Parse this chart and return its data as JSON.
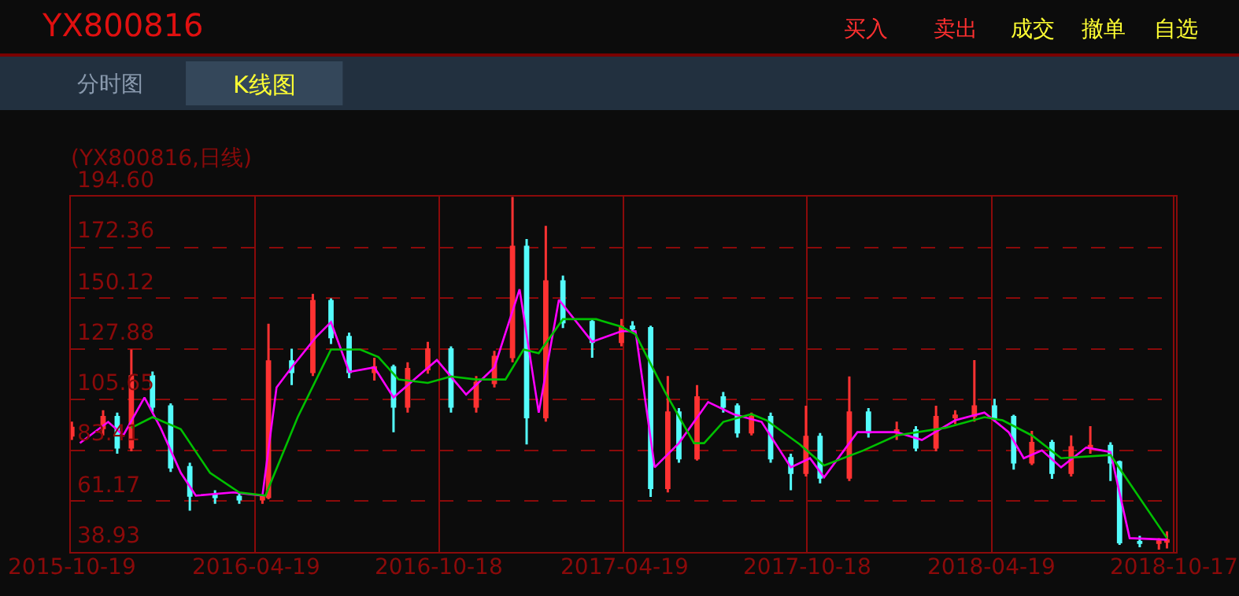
{
  "chart_data": {
    "type": "candlestick",
    "title": "(YX800816,日线)",
    "annotations": [
      "YX800816",
      "买入",
      "卖出",
      "成交",
      "撤单",
      "自选",
      "分时图",
      "K线图"
    ],
    "x": [
      "2015-10-20",
      "2015-11-20",
      "2015-12-04",
      "2015-12-18",
      "2016-01-08",
      "2016-01-26",
      "2016-02-14",
      "2016-03-10",
      "2016-04-03",
      "2016-04-26",
      "2016-05-02",
      "2016-05-25",
      "2016-06-15",
      "2016-07-03",
      "2016-07-21",
      "2016-08-15",
      "2016-09-03",
      "2016-09-17",
      "2016-10-07",
      "2016-10-30",
      "2016-11-24",
      "2016-12-12",
      "2016-12-30",
      "2017-01-13",
      "2017-02-01",
      "2017-02-18",
      "2017-03-19",
      "2017-04-17",
      "2017-04-28",
      "2017-05-16",
      "2017-06-02",
      "2017-06-13",
      "2017-07-01",
      "2017-07-27",
      "2017-08-10",
      "2017-08-24",
      "2017-09-12",
      "2017-10-02",
      "2017-10-17",
      "2017-10-31",
      "2017-11-29",
      "2017-12-18",
      "2018-01-15",
      "2018-02-03",
      "2018-02-23",
      "2018-03-14",
      "2018-04-02",
      "2018-04-22",
      "2018-05-11",
      "2018-05-29",
      "2018-06-18",
      "2018-07-07",
      "2018-07-26",
      "2018-08-15",
      "2018-08-24",
      "2018-09-13",
      "2018-10-02",
      "2018-10-10"
    ],
    "ohlc": [
      [
        90,
        96,
        88,
        93.3
      ],
      [
        93.3,
        101,
        90,
        98
      ],
      [
        98,
        100,
        82,
        84.7
      ],
      [
        84.7,
        127.6,
        83,
        115.8
      ],
      [
        115.8,
        118,
        100,
        102.6
      ],
      [
        102.6,
        104,
        74,
        76
      ],
      [
        76,
        78,
        57,
        63.6
      ],
      [
        63.6,
        66,
        60,
        63
      ],
      [
        63,
        65,
        60,
        62
      ],
      [
        62,
        64,
        60,
        63
      ],
      [
        63,
        138.9,
        62,
        122.4
      ],
      [
        122.4,
        128,
        112,
        117.8
      ],
      [
        117.8,
        152,
        116,
        148.8
      ],
      [
        148.8,
        150,
        130,
        133
      ],
      [
        133,
        135,
        115,
        117.8
      ],
      [
        117.8,
        124,
        114,
        119.8
      ],
      [
        119.8,
        121,
        91.4,
        102.6
      ],
      [
        102.6,
        122,
        100,
        119
      ],
      [
        119,
        131,
        117,
        127.6
      ],
      [
        127.6,
        129,
        100,
        102.6
      ],
      [
        102.6,
        116,
        100,
        113
      ],
      [
        113,
        127,
        111,
        124.3
      ],
      [
        124.3,
        194.4,
        122,
        172.6
      ],
      [
        172.6,
        176,
        86,
        98
      ],
      [
        98,
        181.8,
        96,
        157.4
      ],
      [
        157.4,
        160,
        137,
        139.6
      ],
      [
        139.6,
        141,
        124,
        131
      ],
      [
        131,
        141,
        129,
        137.6
      ],
      [
        137.6,
        140,
        135,
        136.9
      ],
      [
        136.9,
        138,
        63,
        67
      ],
      [
        67,
        116,
        65,
        100
      ],
      [
        100,
        102,
        78,
        80
      ],
      [
        80,
        112,
        79,
        106.6
      ],
      [
        106.6,
        109,
        100,
        102.6
      ],
      [
        102.6,
        104,
        89,
        91.4
      ],
      [
        91.4,
        100,
        90,
        98
      ],
      [
        98,
        100,
        78,
        80
      ],
      [
        80,
        82,
        66,
        73.6
      ],
      [
        73.6,
        103,
        72,
        89.3
      ],
      [
        89.3,
        91,
        69,
        71.6
      ],
      [
        71.6,
        115.8,
        70,
        100
      ],
      [
        100,
        102,
        89,
        91.4
      ],
      [
        91.4,
        96,
        88,
        92.1
      ],
      [
        92.1,
        94,
        83,
        84.7
      ],
      [
        84.7,
        103,
        83,
        98
      ],
      [
        98,
        101,
        95,
        98.6
      ],
      [
        98.6,
        123,
        96,
        102.6
      ],
      [
        102.6,
        106,
        96,
        98
      ],
      [
        98,
        99,
        75,
        78.2
      ],
      [
        78.2,
        92,
        77,
        86.6
      ],
      [
        86.6,
        88,
        71,
        73.6
      ],
      [
        73.6,
        90,
        72,
        84.7
      ],
      [
        84.7,
        94,
        82,
        85.3
      ],
      [
        85.3,
        87,
        70,
        78.2
      ],
      [
        78.2,
        79,
        42,
        43.2
      ],
      [
        43.2,
        46,
        41,
        43
      ],
      [
        43,
        45,
        40,
        43.5
      ],
      [
        43.5,
        48,
        40.5,
        44
      ]
    ],
    "colors": [
      "#ff3232",
      "#ff3232",
      "#54fcfc",
      "#ff3232",
      "#54fcfc",
      "#54fcfc",
      "#54fcfc",
      "#54fcfc",
      "#54fcfc",
      "#ff3232",
      "#ff3232",
      "#54fcfc",
      "#ff3232",
      "#54fcfc",
      "#54fcfc",
      "#ff3232",
      "#54fcfc",
      "#ff3232",
      "#ff3232",
      "#54fcfc",
      "#ff3232",
      "#ff3232",
      "#ff3232",
      "#54fcfc",
      "#ff3232",
      "#54fcfc",
      "#54fcfc",
      "#ff3232",
      "#54fcfc",
      "#54fcfc",
      "#ff3232",
      "#54fcfc",
      "#ff3232",
      "#54fcfc",
      "#54fcfc",
      "#ff3232",
      "#54fcfc",
      "#54fcfc",
      "#ff3232",
      "#54fcfc",
      "#ff3232",
      "#54fcfc",
      "#ff3232",
      "#54fcfc",
      "#ff3232",
      "#ff3232",
      "#ff3232",
      "#54fcfc",
      "#54fcfc",
      "#ff3232",
      "#54fcfc",
      "#ff3232",
      "#ff3232",
      "#54fcfc",
      "#54fcfc",
      "#54fcfc",
      "#ff3232",
      "#ff3232"
    ],
    "series": [
      {
        "type": "line",
        "color": "#ff00ff",
        "x": [
          "2015-10-28",
          "2015-11-25",
          "2015-12-10",
          "2015-12-31",
          "2016-01-16",
          "2016-02-05",
          "2016-02-20",
          "2016-03-28",
          "2016-04-26",
          "2016-05-10",
          "2016-05-25",
          "2016-06-18",
          "2016-07-03",
          "2016-07-21",
          "2016-08-15",
          "2016-09-03",
          "2016-09-27",
          "2016-10-16",
          "2016-11-14",
          "2016-12-12",
          "2017-01-06",
          "2017-01-25",
          "2017-02-14",
          "2017-03-19",
          "2017-04-17",
          "2017-05-01",
          "2017-05-20",
          "2017-06-13",
          "2017-07-12",
          "2017-08-06",
          "2017-09-03",
          "2017-10-02",
          "2017-10-21",
          "2017-11-04",
          "2017-12-07",
          "2018-01-15",
          "2018-02-09",
          "2018-03-14",
          "2018-04-12",
          "2018-05-06",
          "2018-05-21",
          "2018-06-08",
          "2018-06-27",
          "2018-07-22",
          "2018-08-15",
          "2018-09-03",
          "2018-10-10"
        ],
        "values": [
          86.6,
          95.9,
          90,
          106.6,
          93.3,
          73.6,
          63.6,
          65,
          63.6,
          111,
          119.8,
          133,
          139.6,
          117.8,
          119.8,
          106.6,
          115.8,
          123,
          107.9,
          119.8,
          154,
          100,
          149.4,
          131,
          135.6,
          135.6,
          76,
          86.6,
          104.6,
          99.3,
          95.9,
          76,
          80,
          71.6,
          91.4,
          91.4,
          88,
          96.6,
          100,
          91.4,
          80,
          83.4,
          76,
          84.7,
          82.7,
          45,
          44.3
        ]
      },
      {
        "type": "line",
        "color": "#00c000",
        "x": [
          "2015-12-18",
          "2016-01-08",
          "2016-02-05",
          "2016-03-05",
          "2016-04-03",
          "2016-04-29",
          "2016-05-31",
          "2016-07-03",
          "2016-08-01",
          "2016-08-19",
          "2016-09-08",
          "2016-10-07",
          "2016-10-30",
          "2016-11-24",
          "2016-12-23",
          "2017-01-10",
          "2017-01-25",
          "2017-02-18",
          "2017-03-23",
          "2017-04-17",
          "2017-05-01",
          "2017-05-30",
          "2017-06-28",
          "2017-07-08",
          "2017-07-27",
          "2017-08-24",
          "2017-09-08",
          "2017-10-11",
          "2017-11-04",
          "2017-12-13",
          "2018-01-15",
          "2018-03-04",
          "2018-04-12",
          "2018-04-30",
          "2018-05-29",
          "2018-06-27",
          "2018-08-15",
          "2018-10-10"
        ],
        "values": [
          93.3,
          98,
          92.7,
          73.6,
          65,
          63.6,
          98,
          127.6,
          127.6,
          124.3,
          114.5,
          113,
          115.8,
          114.5,
          114.5,
          127.6,
          126,
          140.9,
          140.9,
          137.6,
          134.3,
          109.2,
          86.6,
          86.6,
          95.9,
          99.3,
          96.6,
          86,
          76.8,
          83.4,
          90,
          93.3,
          98,
          96.6,
          90,
          80,
          81.4,
          45
        ]
      }
    ],
    "xlim": [
      "2015-10-19",
      "2018-10-19"
    ],
    "xticks": [
      {
        "value": "2015-10-19",
        "label": "2015-10-19"
      },
      {
        "value": "2016-04-19",
        "label": "2016-04-19"
      },
      {
        "value": "2016-10-18",
        "label": "2016-10-18"
      },
      {
        "value": "2017-04-19",
        "label": "2017-04-19"
      },
      {
        "value": "2017-10-18",
        "label": "2017-10-18"
      },
      {
        "value": "2018-04-19",
        "label": "2018-04-19"
      },
      {
        "value": "2018-10-17",
        "label": "2018-10-17"
      }
    ],
    "ylim": [
      38.93,
      194.6
    ],
    "yticks": [
      38.93,
      61.17,
      83.41,
      105.65,
      127.88,
      150.12,
      172.36,
      {
        "value": 194.6,
        "label": "194.60"
      }
    ],
    "grid": true
  }
}
